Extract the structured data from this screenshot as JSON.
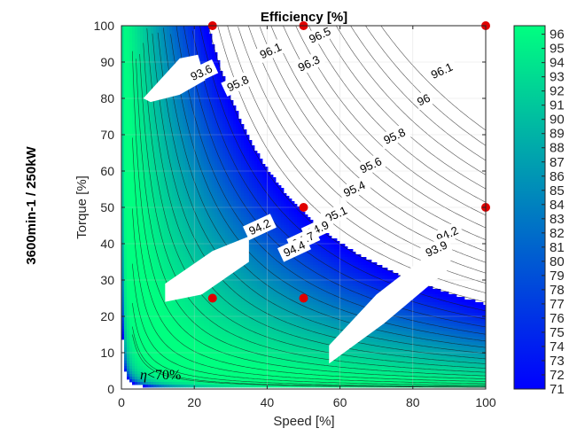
{
  "chart_data": {
    "type": "contour",
    "title": "Efficiency [%]",
    "side_title": "3600min-1 / 250kW",
    "xlabel": "Speed [%]",
    "ylabel": "Torque [%]",
    "xlim": [
      0,
      100
    ],
    "ylim": [
      0,
      100
    ],
    "xticks": [
      "0",
      "20",
      "40",
      "60",
      "80",
      "100"
    ],
    "yticks": [
      "0",
      "10",
      "20",
      "30",
      "40",
      "50",
      "60",
      "70",
      "80",
      "90",
      "100"
    ],
    "grid": true,
    "annotation": "<70%",
    "annotation_symbol": "η",
    "colorbar": {
      "min": 71,
      "max": 96.6,
      "ticks": [
        "71",
        "72",
        "73",
        "74",
        "75",
        "76",
        "77",
        "78",
        "79",
        "80",
        "81",
        "82",
        "83",
        "84",
        "85",
        "86",
        "87",
        "88",
        "89",
        "90",
        "91",
        "92",
        "93",
        "94",
        "95",
        "96"
      ],
      "colormap": "winter",
      "color_low": "#0000ff",
      "color_high": "#00ff80"
    },
    "contour_levels": [
      94.2,
      94.4,
      94.7,
      94.9,
      95.1,
      95.4,
      95.6,
      95.8,
      96,
      96.1,
      96.3,
      96.5
    ],
    "contour_labels": [
      {
        "text": "96.5",
        "x": 54.5,
        "y": 97.3
      },
      {
        "text": "96.3",
        "x": 51.5,
        "y": 89.5
      },
      {
        "text": "96.1",
        "x": 41,
        "y": 93
      },
      {
        "text": "95.8",
        "x": 32,
        "y": 84
      },
      {
        "text": "93.6",
        "x": 22,
        "y": 87
      },
      {
        "text": "96.1",
        "x": 88,
        "y": 87.5
      },
      {
        "text": "96",
        "x": 83,
        "y": 79.5
      },
      {
        "text": "95.8",
        "x": 75,
        "y": 69.5
      },
      {
        "text": "95.6",
        "x": 68.5,
        "y": 61.5
      },
      {
        "text": "95.4",
        "x": 64,
        "y": 55
      },
      {
        "text": "95.1",
        "x": 59,
        "y": 48
      },
      {
        "text": "94.9",
        "x": 54,
        "y": 44
      },
      {
        "text": "94.7",
        "x": 50,
        "y": 41
      },
      {
        "text": "94.4",
        "x": 47.5,
        "y": 38.5
      },
      {
        "text": "94.2",
        "x": 38,
        "y": 44.5
      },
      {
        "text": "94.2",
        "x": 89.5,
        "y": 42.5
      },
      {
        "text": "93.9",
        "x": 86.5,
        "y": 38.5
      }
    ],
    "markers": [
      {
        "x": 25,
        "y": 100
      },
      {
        "x": 50,
        "y": 100
      },
      {
        "x": 100,
        "y": 100
      },
      {
        "x": 50,
        "y": 50
      },
      {
        "x": 100,
        "y": 50
      },
      {
        "x": 25,
        "y": 25
      },
      {
        "x": 50,
        "y": 25
      }
    ],
    "marker_color": "#e00000"
  }
}
